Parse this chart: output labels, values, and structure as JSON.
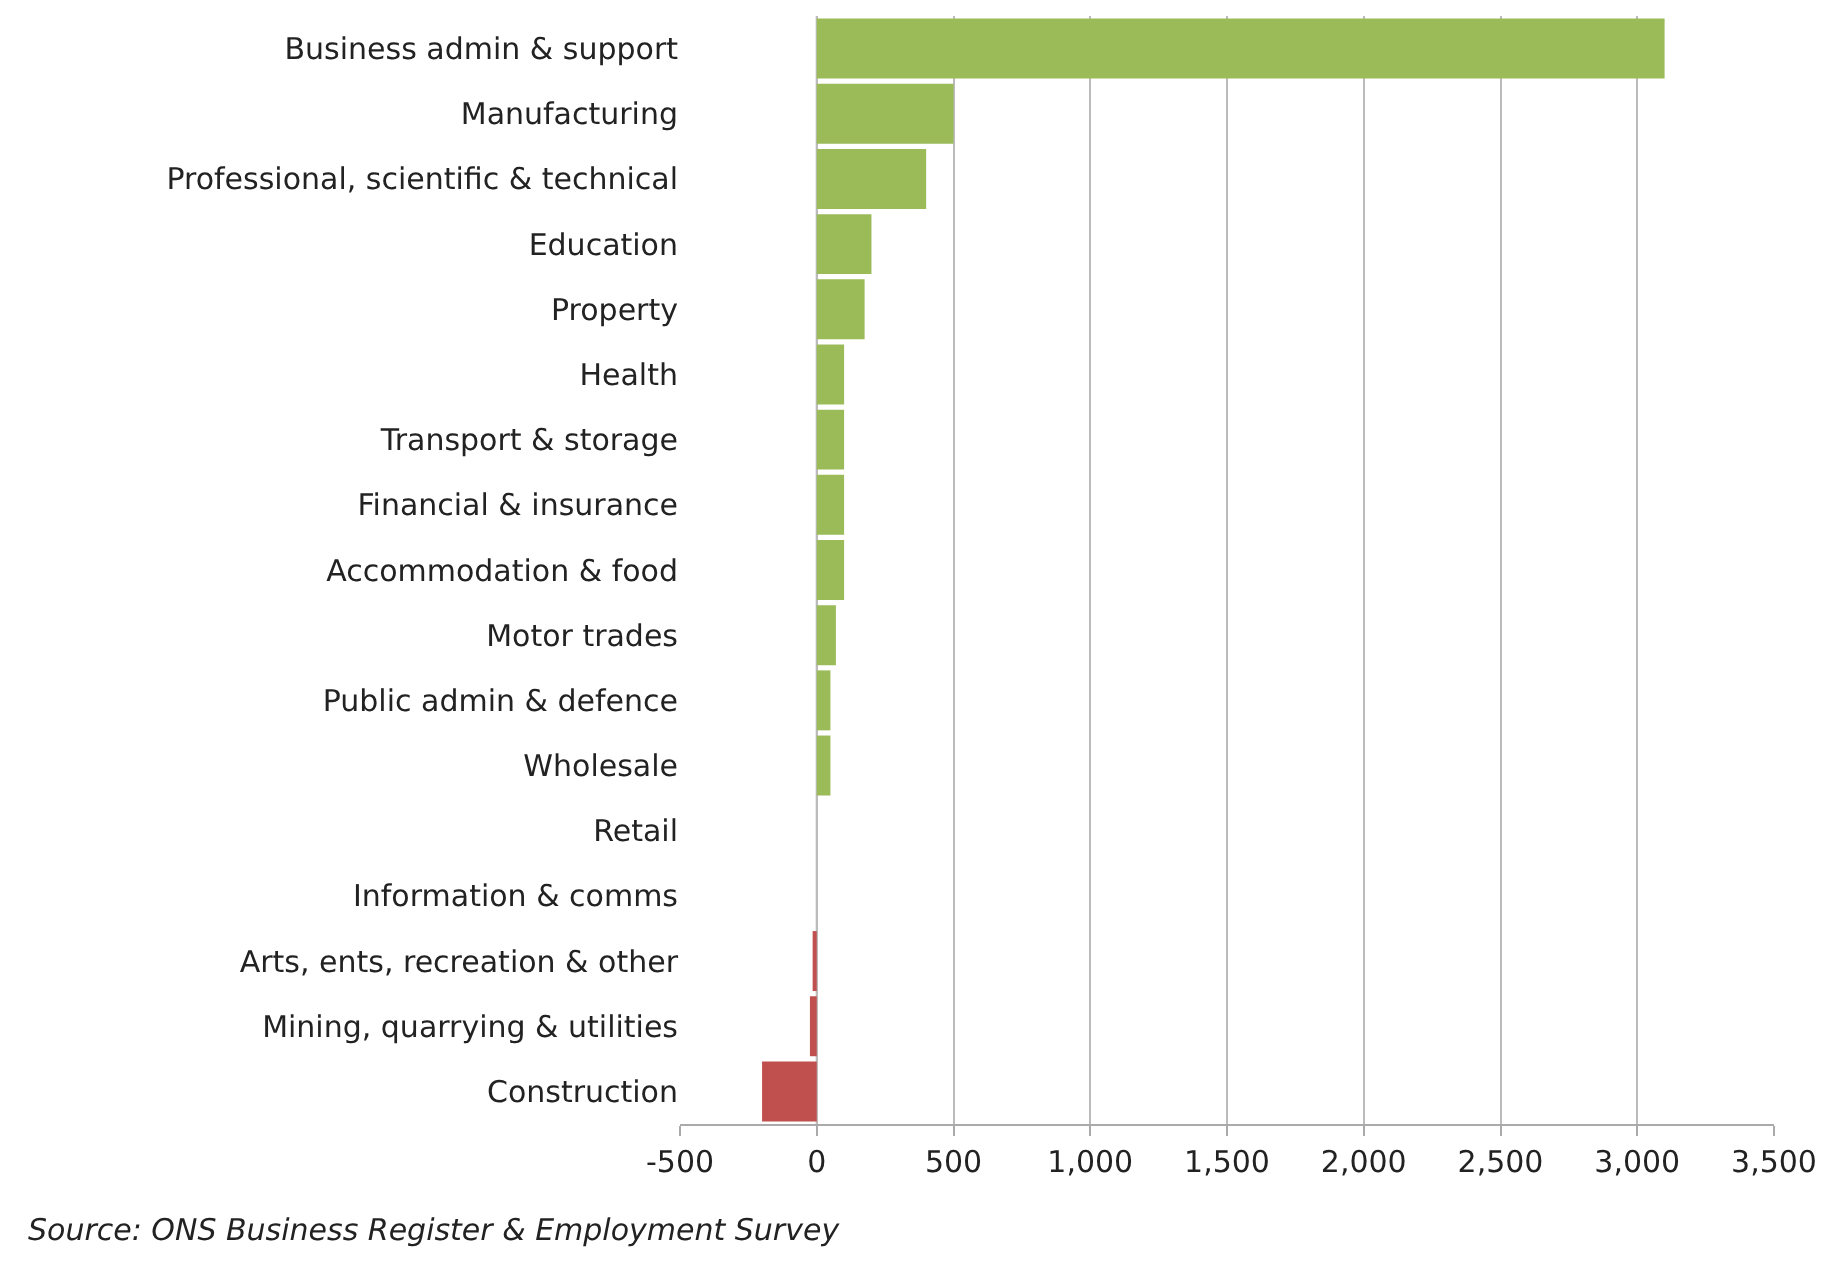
{
  "chart_data": {
    "type": "bar",
    "orientation": "horizontal",
    "categories": [
      "Business admin & support",
      "Manufacturing",
      "Professional, scientific & technical",
      "Education",
      "Property",
      "Health",
      "Transport & storage",
      "Financial & insurance",
      "Accommodation & food",
      "Motor trades",
      "Public admin & defence",
      "Wholesale",
      "Retail",
      "Information & comms",
      "Arts, ents, recreation & other",
      "Mining, quarrying & utilities",
      "Construction"
    ],
    "values": [
      3100,
      500,
      400,
      200,
      175,
      100,
      100,
      100,
      100,
      70,
      50,
      50,
      0,
      0,
      -15,
      -25,
      -200
    ],
    "colors": [
      "#9bbb59",
      "#9bbb59",
      "#9bbb59",
      "#9bbb59",
      "#9bbb59",
      "#9bbb59",
      "#9bbb59",
      "#9bbb59",
      "#9bbb59",
      "#9bbb59",
      "#9bbb59",
      "#9bbb59",
      "#9bbb59",
      "#9bbb59",
      "#c0504d",
      "#c0504d",
      "#c0504d"
    ],
    "xlim": [
      -500,
      3500
    ],
    "xticks": [
      {
        "value": -500,
        "label": "-500"
      },
      0,
      500,
      {
        "value": 1000,
        "label": "1,000"
      },
      {
        "value": 1500,
        "label": "1,500"
      },
      {
        "value": 2000,
        "label": "2,000"
      },
      {
        "value": 2500,
        "label": "2,500"
      },
      {
        "value": 3000,
        "label": "3,000"
      },
      {
        "value": 3500,
        "label": "3,500"
      }
    ],
    "grid": "x",
    "legend": false,
    "annotations": [
      "Source: ONS Business Register & Employment Survey"
    ]
  }
}
